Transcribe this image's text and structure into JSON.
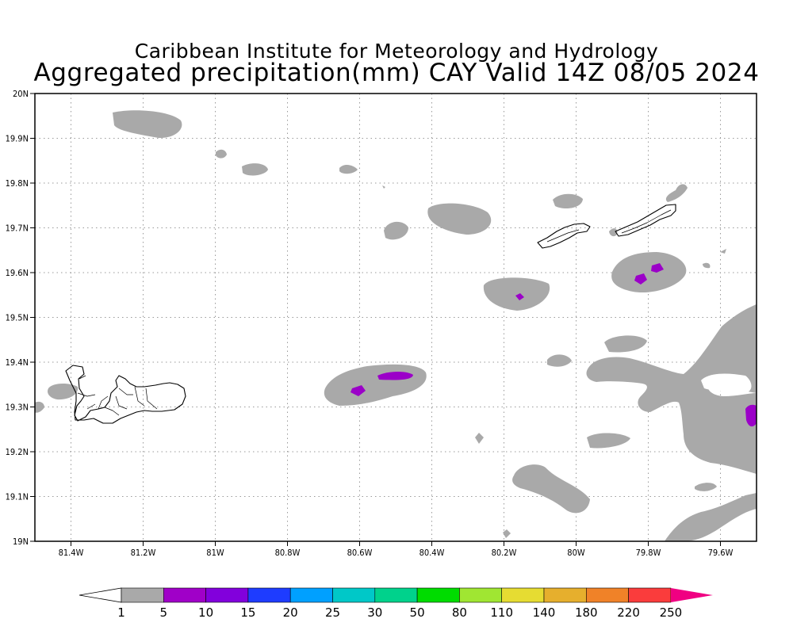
{
  "title": {
    "line1": "Caribbean Institute for Meteorology and Hydrology",
    "line2": "Aggregated precipitation(mm) CAY Valid 14Z 08/05 2024"
  },
  "map": {
    "lon_range": [
      -81.5,
      -79.5
    ],
    "lat_range": [
      19.0,
      20.0
    ],
    "grid": true,
    "lon_ticks": [
      {
        "value": -81.4,
        "label": "81.4W"
      },
      {
        "value": -81.2,
        "label": "81.2W"
      },
      {
        "value": -81.0,
        "label": "81W"
      },
      {
        "value": -80.8,
        "label": "80.8W"
      },
      {
        "value": -80.6,
        "label": "80.6W"
      },
      {
        "value": -80.4,
        "label": "80.4W"
      },
      {
        "value": -80.2,
        "label": "80.2W"
      },
      {
        "value": -80.0,
        "label": "80W"
      },
      {
        "value": -79.8,
        "label": "79.8W"
      },
      {
        "value": -79.6,
        "label": "79.6W"
      }
    ],
    "lat_ticks": [
      {
        "value": 20.0,
        "label": "20N"
      },
      {
        "value": 19.9,
        "label": "19.9N"
      },
      {
        "value": 19.8,
        "label": "19.8N"
      },
      {
        "value": 19.7,
        "label": "19.7N"
      },
      {
        "value": 19.6,
        "label": "19.6N"
      },
      {
        "value": 19.5,
        "label": "19.5N"
      },
      {
        "value": 19.4,
        "label": "19.4N"
      },
      {
        "value": 19.3,
        "label": "19.3N"
      },
      {
        "value": 19.2,
        "label": "19.2N"
      },
      {
        "value": 19.1,
        "label": "19.1N"
      },
      {
        "value": 19.0,
        "label": "19N"
      }
    ]
  },
  "colorbar": {
    "labels": [
      "1",
      "5",
      "10",
      "15",
      "20",
      "25",
      "30",
      "50",
      "80",
      "110",
      "140",
      "180",
      "220",
      "250"
    ],
    "colors": [
      "#a9a9a9",
      "#a000c8",
      "#8200dc",
      "#1e3cff",
      "#00a0ff",
      "#00c8c8",
      "#00d28c",
      "#00dc00",
      "#a0e632",
      "#e6dc32",
      "#e6af2d",
      "#f08228",
      "#fa3c3c"
    ],
    "under_color": "#ffffff",
    "over_color": "#f00082"
  },
  "colors": {
    "light_precip": "#a9a9a9",
    "moderate_precip": "#9b00c8"
  }
}
